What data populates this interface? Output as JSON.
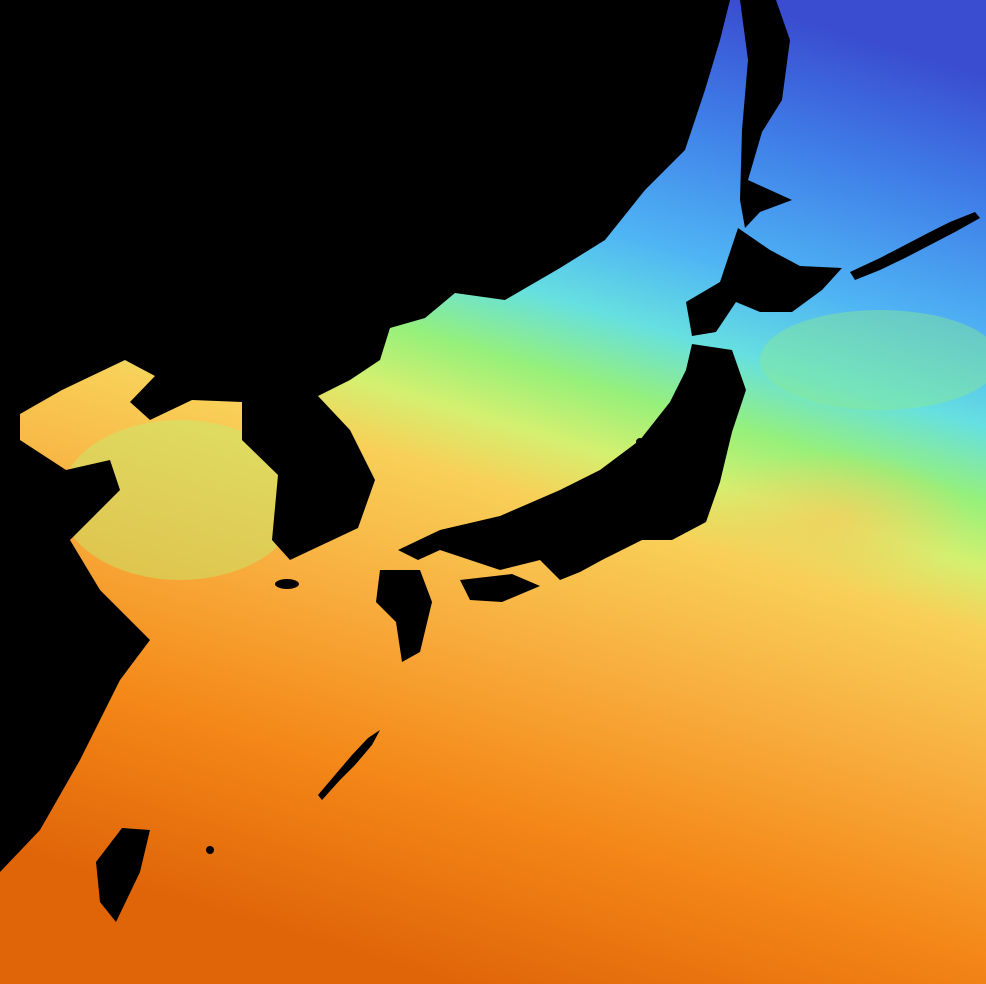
{
  "map": {
    "colors": {
      "land": "#000000",
      "sea_cold": "#3a4cd0",
      "sea_cool": "#4fb4f4",
      "sea_mild": "#96f07a",
      "sea_warm": "#f8c050",
      "sea_hot": "#e86a08"
    }
  }
}
